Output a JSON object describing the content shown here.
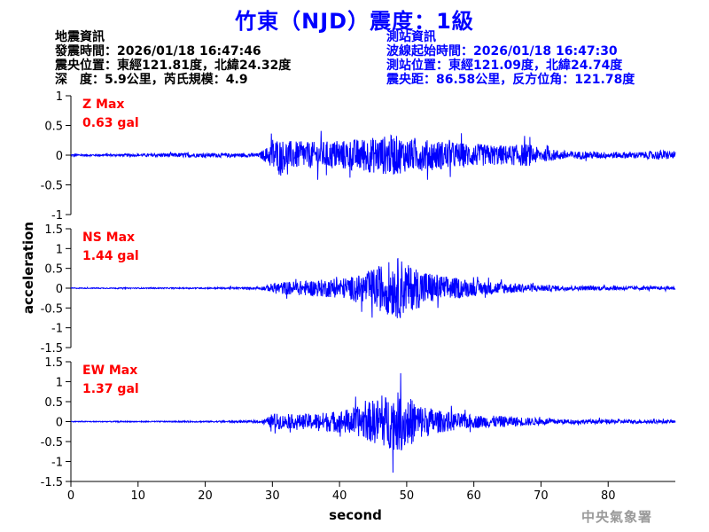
{
  "title": "竹東（NJD）震度：1級",
  "event_info": {
    "heading": "地震資訊",
    "origin_time": "發震時間：2026/01/18 16:47:46",
    "epicenter": "震央位置：東經121.81度，北緯24.32度",
    "depth_magnitude": "深　度：5.9公里，芮氏規模：4.9"
  },
  "station_info": {
    "heading": "測站資訊",
    "wave_start": "波線起始時間：2026/01/18 16:47:30",
    "location": "測站位置：東經121.09度，北緯24.74度",
    "distance": "震央距：86.58公里，反方位角：121.78度"
  },
  "agency": "中央氣象署",
  "colors": {
    "trace": "#0000ff",
    "max_label": "#ff0000",
    "title": "#0000ff",
    "info_right": "#0000ff",
    "agency": "#9a9a9a"
  },
  "chart_data": {
    "type": "line",
    "xlabel": "second",
    "ylabel": "acceleration",
    "xlim": [
      0,
      90
    ],
    "x_ticks": [
      0,
      10,
      20,
      30,
      40,
      50,
      60,
      70,
      80
    ],
    "panels": [
      {
        "component": "Z",
        "max_label": "Z Max",
        "max_value": "0.63 gal",
        "ylim": [
          -1,
          1
        ],
        "y_ticks": [
          -1,
          -0.5,
          0,
          0.5,
          1
        ],
        "y_tick_labels": [
          "-1",
          "-0.5",
          "0",
          "0.5",
          "1"
        ],
        "envelope": {
          "x": [
            0,
            10,
            16,
            20,
            28,
            29.5,
            30,
            32,
            35,
            40,
            45,
            48,
            50,
            55,
            60,
            65,
            68,
            70,
            75,
            80,
            85,
            88,
            90
          ],
          "amp": [
            0.03,
            0.04,
            0.07,
            0.06,
            0.06,
            0.3,
            0.55,
            0.45,
            0.4,
            0.45,
            0.55,
            0.63,
            0.5,
            0.45,
            0.35,
            0.3,
            0.35,
            0.2,
            0.12,
            0.1,
            0.1,
            0.15,
            0.1
          ]
        }
      },
      {
        "component": "NS",
        "max_label": "NS Max",
        "max_value": "1.44 gal",
        "ylim": [
          -1.5,
          1.5
        ],
        "y_ticks": [
          -1.5,
          -1,
          -0.5,
          0,
          0.5,
          1,
          1.5
        ],
        "y_tick_labels": [
          "-1.5",
          "-1",
          "-0.5",
          "0",
          "0.5",
          "1",
          "1.5"
        ],
        "envelope": {
          "x": [
            0,
            20,
            28,
            29.5,
            30,
            32,
            35,
            40,
            43,
            45,
            47,
            49,
            50,
            52,
            55,
            60,
            65,
            70,
            75,
            80,
            85,
            90
          ],
          "amp": [
            0.02,
            0.03,
            0.05,
            0.15,
            0.25,
            0.3,
            0.35,
            0.45,
            0.6,
            0.9,
            1.2,
            1.44,
            1.1,
            0.9,
            0.6,
            0.35,
            0.25,
            0.15,
            0.1,
            0.1,
            0.08,
            0.07
          ]
        }
      },
      {
        "component": "EW",
        "max_label": "EW Max",
        "max_value": "1.37 gal",
        "ylim": [
          -1.5,
          1.5
        ],
        "y_ticks": [
          -1.5,
          -1,
          -0.5,
          0,
          0.5,
          1,
          1.5
        ],
        "y_tick_labels": [
          "-1.5",
          "-1",
          "-0.5",
          "0",
          "0.5",
          "1",
          "1.5"
        ],
        "envelope": {
          "x": [
            0,
            20,
            28,
            29.5,
            30,
            32,
            35,
            40,
            43,
            45,
            47,
            49,
            50,
            52,
            55,
            60,
            65,
            70,
            75,
            80,
            85,
            90
          ],
          "amp": [
            0.02,
            0.03,
            0.05,
            0.2,
            0.4,
            0.3,
            0.35,
            0.5,
            0.7,
            1.0,
            1.2,
            1.37,
            1.2,
            0.8,
            0.5,
            0.3,
            0.25,
            0.15,
            0.1,
            0.1,
            0.08,
            0.07
          ]
        }
      }
    ]
  }
}
